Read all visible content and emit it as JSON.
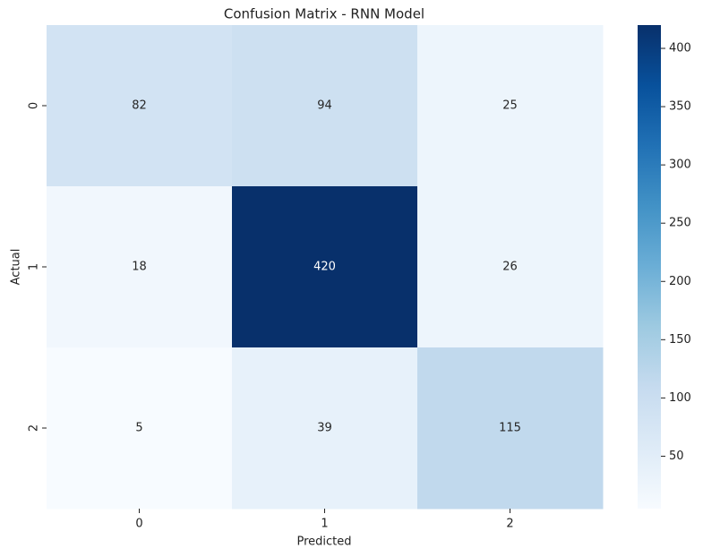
{
  "chart_data": {
    "type": "heatmap",
    "title": "Confusion Matrix - RNN Model",
    "xlabel": "Predicted",
    "ylabel": "Actual",
    "x_categories": [
      "0",
      "1",
      "2"
    ],
    "y_categories": [
      "0",
      "1",
      "2"
    ],
    "values": [
      [
        82,
        94,
        25
      ],
      [
        18,
        420,
        26
      ],
      [
        5,
        39,
        115
      ]
    ],
    "colormap": [
      "#f7fbff",
      "#deebf7",
      "#c6dbef",
      "#9ecae1",
      "#6baed6",
      "#4292c6",
      "#2171b5",
      "#08519c",
      "#08306b"
    ],
    "clim": [
      5,
      420
    ],
    "cticks": [
      50,
      100,
      150,
      200,
      250,
      300,
      350,
      400
    ]
  }
}
